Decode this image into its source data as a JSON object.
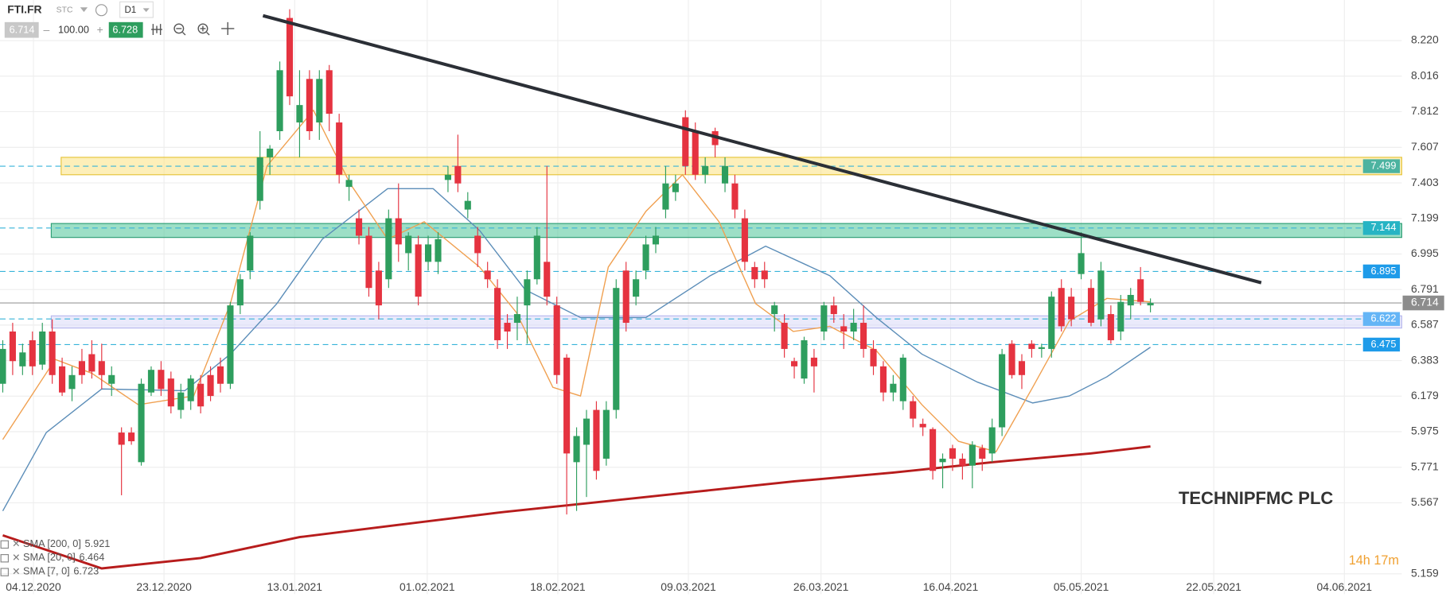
{
  "toolbar": {
    "symbol": "FTI.FR",
    "market": "STC",
    "interval": "D1",
    "bid": "6.714",
    "volume": "100.00",
    "ask": "6.728"
  },
  "timer": "14h 17m",
  "chart_data": {
    "type": "candlestick",
    "title": "TECHNIPFMC PLC",
    "xlim": [
      -0.28,
      141.4
    ],
    "ylim": [
      5.042,
      8.453
    ],
    "xticks": [
      {
        "value": 3.1,
        "label": "04.12.2020"
      },
      {
        "value": 16.3,
        "label": "23.12.2020"
      },
      {
        "value": 29.5,
        "label": "13.01.2021"
      },
      {
        "value": 42.9,
        "label": "01.02.2021"
      },
      {
        "value": 56.1,
        "label": "18.02.2021"
      },
      {
        "value": 69.3,
        "label": "09.03.2021"
      },
      {
        "value": 82.7,
        "label": "26.03.2021"
      },
      {
        "value": 95.8,
        "label": "16.04.2021"
      },
      {
        "value": 109,
        "label": "05.05.2021"
      },
      {
        "value": 122.4,
        "label": "22.05.2021"
      },
      {
        "value": 135.6,
        "label": "04.06.2021"
      }
    ],
    "yticks": [
      {
        "value": 8.22,
        "label": "8.220"
      },
      8.016,
      7.812,
      7.607,
      7.403,
      7.199,
      6.995,
      6.791,
      6.587,
      6.383,
      6.179,
      5.975,
      5.771,
      5.567,
      5.159
    ],
    "grid": true,
    "up_color": "#2e9e5e",
    "down_color": "#e53340",
    "open": [
      6.25,
      6.55,
      6.35,
      6.5,
      6.36,
      6.55,
      6.35,
      6.22,
      6.38,
      6.42,
      6.38,
      6.25,
      5.97,
      5.97,
      5.8,
      6.2,
      6.33,
      6.28,
      6.1,
      6.15,
      6.25,
      6.3,
      6.35,
      6.25,
      6.7,
      6.9,
      7.3,
      7.55,
      7.7,
      8.35,
      7.75,
      8.0,
      7.75,
      8.05,
      7.75,
      7.38,
      7.2,
      7.1,
      6.9,
      6.85,
      7.2,
      7.0,
      7.05,
      6.95,
      6.95,
      7.42,
      7.5,
      7.25,
      7.1,
      6.9,
      6.8,
      6.6,
      6.6,
      6.7,
      6.85,
      6.95,
      6.7,
      6.4,
      5.8,
      5.9,
      6.1,
      5.82,
      6.1,
      6.9,
      6.75,
      6.9,
      7.05,
      7.25,
      7.35,
      7.78,
      7.7,
      7.45,
      7.7,
      7.4,
      7.4,
      7.2,
      6.92,
      6.9,
      6.65,
      6.6,
      6.38,
      6.28,
      6.4,
      6.55,
      6.7,
      6.58,
      6.55,
      6.6,
      6.45,
      6.35,
      6.2,
      6.15,
      6.15,
      6.02,
      5.99,
      5.8,
      5.88,
      5.82,
      5.78,
      5.88,
      5.85,
      6.0,
      6.48,
      6.38,
      6.48,
      6.45,
      6.45,
      6.8,
      6.75,
      6.88,
      6.8,
      6.62,
      6.65,
      6.55,
      6.7,
      6.85,
      6.7
    ],
    "high": [
      6.5,
      6.6,
      6.48,
      6.55,
      6.6,
      6.62,
      6.4,
      6.35,
      6.45,
      6.5,
      6.48,
      6.35,
      6.0,
      6.0,
      6.28,
      6.35,
      6.38,
      6.32,
      6.25,
      6.3,
      6.3,
      6.35,
      6.4,
      6.72,
      6.88,
      7.12,
      7.7,
      7.62,
      8.1,
      8.4,
      8.05,
      8.05,
      8.05,
      8.08,
      7.8,
      7.45,
      7.25,
      7.15,
      6.95,
      7.25,
      7.4,
      7.12,
      7.1,
      7.1,
      7.12,
      7.5,
      7.68,
      7.35,
      7.15,
      6.95,
      6.85,
      6.65,
      6.75,
      6.9,
      7.15,
      7.5,
      6.75,
      6.42,
      6.0,
      6.1,
      6.15,
      6.15,
      6.85,
      6.95,
      6.9,
      7.1,
      7.15,
      7.5,
      7.45,
      7.82,
      7.75,
      7.55,
      7.72,
      7.55,
      7.45,
      7.25,
      6.95,
      6.95,
      6.72,
      6.65,
      6.4,
      6.52,
      6.45,
      6.72,
      6.75,
      6.65,
      6.68,
      6.7,
      6.5,
      6.38,
      6.3,
      6.42,
      6.18,
      6.05,
      6.0,
      5.85,
      5.9,
      5.85,
      5.92,
      5.9,
      6.05,
      6.45,
      6.5,
      6.42,
      6.5,
      6.48,
      6.78,
      6.85,
      6.8,
      7.12,
      6.85,
      6.95,
      6.7,
      6.76,
      6.8,
      6.92,
      6.74
    ],
    "low": [
      6.2,
      6.3,
      6.3,
      6.3,
      6.33,
      6.25,
      6.18,
      6.15,
      6.25,
      6.28,
      6.22,
      6.18,
      5.61,
      5.9,
      5.78,
      6.18,
      6.18,
      6.08,
      6.05,
      6.1,
      6.08,
      6.15,
      6.2,
      6.22,
      6.65,
      6.85,
      7.25,
      7.45,
      7.65,
      7.85,
      7.55,
      7.65,
      7.65,
      7.7,
      7.4,
      7.3,
      7.05,
      6.75,
      6.62,
      6.8,
      6.95,
      6.9,
      6.7,
      6.9,
      6.88,
      7.35,
      7.35,
      7.2,
      6.92,
      6.8,
      6.45,
      6.45,
      6.5,
      6.48,
      6.82,
      6.7,
      6.25,
      5.5,
      5.52,
      5.6,
      5.7,
      5.78,
      6.05,
      6.55,
      6.7,
      6.85,
      7.0,
      7.2,
      7.3,
      7.45,
      7.42,
      7.4,
      7.55,
      7.35,
      7.2,
      6.9,
      6.8,
      6.8,
      6.55,
      6.4,
      6.28,
      6.25,
      6.2,
      6.5,
      6.6,
      6.45,
      6.5,
      6.4,
      6.3,
      6.15,
      6.15,
      6.1,
      6.0,
      5.95,
      5.7,
      5.65,
      5.75,
      5.7,
      5.65,
      5.75,
      5.8,
      5.95,
      6.28,
      6.22,
      6.4,
      6.4,
      6.4,
      6.55,
      6.58,
      6.85,
      6.58,
      6.58,
      6.48,
      6.5,
      6.62,
      6.7,
      6.66
    ],
    "close": [
      6.45,
      6.38,
      6.43,
      6.35,
      6.55,
      6.3,
      6.2,
      6.3,
      6.3,
      6.32,
      6.3,
      6.3,
      5.9,
      5.92,
      6.25,
      6.33,
      6.22,
      6.12,
      6.2,
      6.28,
      6.12,
      6.18,
      6.25,
      6.7,
      6.85,
      7.1,
      7.55,
      7.6,
      8.05,
      7.9,
      7.85,
      7.7,
      8.0,
      7.8,
      7.45,
      7.42,
      7.1,
      6.8,
      6.7,
      7.2,
      7.05,
      7.1,
      6.75,
      7.05,
      7.08,
      7.45,
      7.4,
      7.3,
      7.0,
      6.85,
      6.5,
      6.55,
      6.65,
      6.85,
      7.1,
      6.75,
      6.3,
      5.85,
      5.95,
      6.05,
      5.75,
      6.1,
      6.8,
      6.6,
      6.85,
      7.05,
      7.1,
      7.4,
      7.4,
      7.5,
      7.45,
      7.5,
      7.62,
      7.5,
      7.25,
      6.95,
      6.85,
      6.85,
      6.7,
      6.45,
      6.35,
      6.5,
      6.35,
      6.7,
      6.65,
      6.55,
      6.6,
      6.45,
      6.35,
      6.2,
      6.25,
      6.4,
      6.05,
      6.0,
      5.75,
      5.82,
      5.82,
      5.78,
      5.9,
      5.82,
      6.0,
      6.42,
      6.3,
      6.3,
      6.45,
      6.46,
      6.75,
      6.58,
      6.62,
      7.0,
      6.6,
      6.9,
      6.5,
      6.72,
      6.76,
      6.72,
      6.714
    ],
    "series": [
      {
        "name": "SMA [200, 0]",
        "last": 5.921,
        "color": "#b71c1c",
        "width": 2.5,
        "x": [
          0,
          10,
          20,
          30,
          40,
          50,
          60,
          70,
          80,
          90,
          100,
          110,
          116
        ],
        "values": [
          5.38,
          5.19,
          5.25,
          5.37,
          5.44,
          5.51,
          5.57,
          5.63,
          5.69,
          5.74,
          5.8,
          5.85,
          5.89
        ]
      },
      {
        "name": "SMA [20, 0]",
        "last": 6.464,
        "color": "#5b8db8",
        "width": 1.2,
        "x": [
          0,
          4.4,
          10,
          18.4,
          23,
          27.7,
          32.3,
          38.9,
          43.5,
          48.2,
          52.8,
          58.4,
          65,
          71.5,
          77.1,
          83.6,
          88.3,
          92.9,
          98.5,
          104.1,
          107.8,
          111.6,
          116
        ],
        "values": [
          5.52,
          5.97,
          6.22,
          6.21,
          6.42,
          6.71,
          7.08,
          7.37,
          7.37,
          7.13,
          6.79,
          6.63,
          6.63,
          6.87,
          7.04,
          6.87,
          6.63,
          6.42,
          6.26,
          6.14,
          6.18,
          6.29,
          6.46
        ]
      },
      {
        "name": "SMA [7, 0]",
        "last": 6.723,
        "color": "#f0a050",
        "width": 1.2,
        "x": [
          0,
          5.3,
          9,
          13.7,
          19.3,
          23,
          26.7,
          31.4,
          35.1,
          38.9,
          42.6,
          48.2,
          51.9,
          55.6,
          58.4,
          61.2,
          65,
          68.7,
          72.4,
          76.1,
          79.9,
          83.6,
          88.3,
          92.9,
          96.6,
          100.4,
          104.1,
          107.8,
          111.6,
          116
        ],
        "values": [
          5.93,
          6.39,
          6.31,
          6.13,
          6.18,
          6.71,
          7.5,
          7.82,
          7.4,
          7.08,
          7.18,
          6.92,
          6.66,
          6.23,
          6.18,
          6.92,
          7.24,
          7.45,
          7.18,
          6.71,
          6.55,
          6.58,
          6.44,
          6.13,
          5.92,
          5.86,
          6.23,
          6.61,
          6.74,
          6.72
        ]
      }
    ],
    "levels": [
      {
        "value": 7.499,
        "band": [
          7.45,
          7.55
        ],
        "xstart": 5.9,
        "fill": "#fbe58a",
        "stroke": "#e6c43a",
        "label_color": "#4cb3a0"
      },
      {
        "value": 7.144,
        "band": [
          7.09,
          7.17
        ],
        "xstart": 4.9,
        "fill": "#5cc9a0",
        "stroke": "#2e9e74",
        "label_color": "#26b4c4"
      },
      {
        "value": 6.895,
        "label_color": "#1e9be9"
      },
      {
        "value": 6.622,
        "band": [
          6.57,
          6.64
        ],
        "xstart": 4.9,
        "fill": "#dcdcf8",
        "stroke": "#b8b8ee",
        "label_color": "#64b5f6"
      },
      {
        "value": 6.475,
        "label_color": "#1e9be9"
      }
    ],
    "last_price": 6.714,
    "trendline": {
      "x": [
        26.3,
        127.2
      ],
      "values": [
        8.363,
        6.83
      ]
    }
  }
}
